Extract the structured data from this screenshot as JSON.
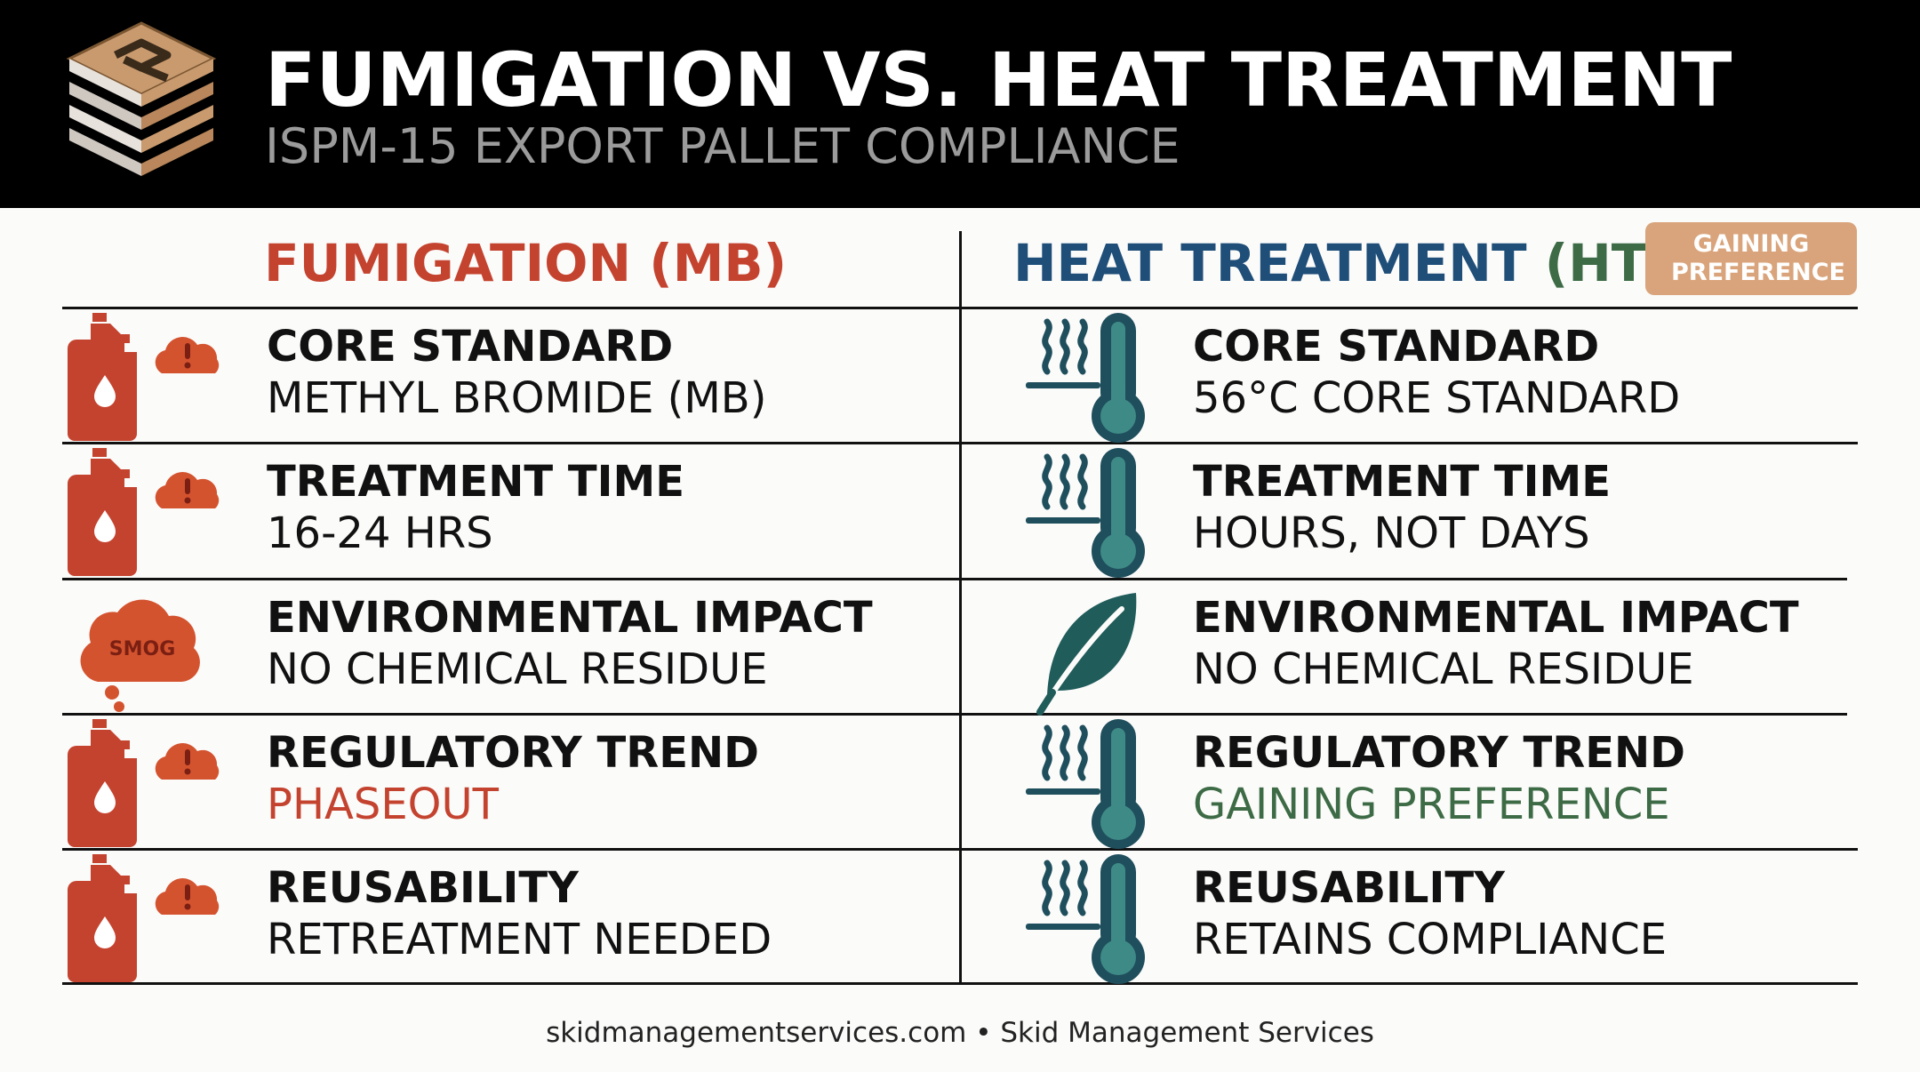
{
  "header": {
    "title": "FUMIGATION VS. HEAT TREATMENT",
    "subtitle": "ISPM-15 EXPORT PALLET COMPLIANCE"
  },
  "columns": {
    "left": {
      "title": "FUMIGATION (MB)"
    },
    "right": {
      "title_main": "HEAT TREATMENT ",
      "title_suffix": "(HT)",
      "badge": "GAINING PREFERENCE"
    }
  },
  "colors": {
    "fumigation": "#c4432f",
    "heat_treatment": "#1f4e78",
    "positive": "#3d6b45",
    "badge": "#d9a47b"
  },
  "rows": [
    {
      "left": {
        "label": "CORE STANDARD",
        "value": "METHYL BROMIDE (MB)",
        "icon": "fuel-can-warning-cloud-icon"
      },
      "right": {
        "label": "CORE STANDARD",
        "value": "56°C CORE STANDARD",
        "icon": "heat-thermometer-icon"
      }
    },
    {
      "left": {
        "label": "TREATMENT TIME",
        "value": "16-24 HRS",
        "icon": "fuel-can-warning-cloud-icon"
      },
      "right": {
        "label": "TREATMENT TIME",
        "value": "HOURS, NOT DAYS",
        "icon": "heat-thermometer-icon"
      }
    },
    {
      "left": {
        "label": "ENVIRONMENTAL IMPACT",
        "value": "NO CHEMICAL RESIDUE",
        "icon": "smog-cloud-icon",
        "icon_text": "SMOG"
      },
      "right": {
        "label": "ENVIRONMENTAL IMPACT",
        "value": "NO CHEMICAL RESIDUE",
        "icon": "leaf-icon"
      }
    },
    {
      "left": {
        "label": "REGULATORY TREND",
        "value": "PHASEOUT",
        "value_color": "#c4432f",
        "icon": "fuel-can-warning-cloud-icon"
      },
      "right": {
        "label": "REGULATORY TREND",
        "value": "GAINING PREFERENCE",
        "value_color": "#3d6b45",
        "icon": "heat-thermometer-icon"
      }
    },
    {
      "left": {
        "label": "REUSABILITY",
        "value": "RETREATMENT NEEDED",
        "icon": "fuel-can-warning-cloud-icon"
      },
      "right": {
        "label": "REUSABILITY",
        "value": "RETAINS COMPLIANCE",
        "icon": "heat-thermometer-icon"
      }
    }
  ],
  "footer": {
    "text": "skidmanagementservices.com • Skid Management Services"
  }
}
